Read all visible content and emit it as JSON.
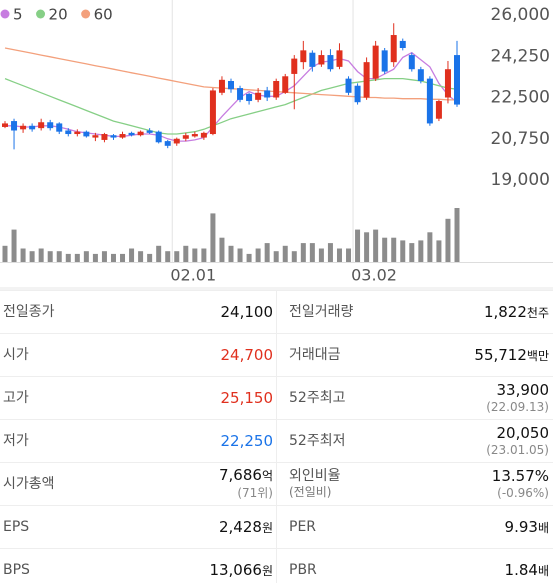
{
  "chart_data": {
    "type": "candlestick",
    "categories": [
      null,
      null,
      null,
      null,
      null,
      null,
      null,
      null,
      null,
      null,
      null,
      null,
      null,
      null,
      null,
      null,
      null,
      null,
      null,
      "02.01",
      null,
      null,
      null,
      null,
      null,
      null,
      null,
      null,
      null,
      null,
      null,
      null,
      null,
      null,
      null,
      null,
      null,
      null,
      null,
      "03.02",
      null,
      null,
      null,
      null,
      null,
      null,
      null,
      null,
      null,
      null,
      null
    ],
    "ylim": [
      19000,
      26000
    ],
    "yticks": [
      {
        "value": 26000,
        "label": "26,000"
      },
      {
        "value": 24250,
        "label": "24,250"
      },
      {
        "value": 22500,
        "label": "22,500"
      },
      {
        "value": 20750,
        "label": "20,750"
      },
      {
        "value": 19000,
        "label": "19,000"
      }
    ],
    "up_color": "#e0301e",
    "down_color": "#1a73e8",
    "open": [
      21250,
      21500,
      21150,
      21300,
      21200,
      21450,
      21400,
      21100,
      20950,
      21050,
      20800,
      20700,
      20900,
      20800,
      21000,
      20900,
      21100,
      21050,
      20650,
      20550,
      20750,
      20850,
      20800,
      20950,
      22700,
      23200,
      22900,
      22650,
      22400,
      22800,
      22500,
      22700,
      23500,
      24000,
      24400,
      23900,
      24300,
      23800,
      23300,
      23000,
      22500,
      23300,
      24500,
      24000,
      24900,
      24300,
      23700,
      23300,
      21600,
      22500,
      24300
    ],
    "high": [
      21500,
      21600,
      21400,
      21400,
      21600,
      21550,
      21450,
      21200,
      21150,
      21100,
      21000,
      21000,
      20950,
      21050,
      21050,
      21100,
      21200,
      21100,
      20700,
      20800,
      21000,
      21050,
      21050,
      22900,
      23400,
      23300,
      23000,
      22700,
      22900,
      22950,
      23300,
      23500,
      24300,
      24900,
      24500,
      24500,
      24550,
      24800,
      23400,
      23100,
      24200,
      24900,
      24600,
      25650,
      25000,
      24400,
      23800,
      23400,
      22400,
      24050,
      24900
    ],
    "low": [
      21200,
      20300,
      21000,
      21050,
      21100,
      21100,
      20950,
      20850,
      20850,
      20800,
      20650,
      20600,
      20700,
      20750,
      20850,
      20850,
      20950,
      20550,
      20350,
      20450,
      20650,
      20800,
      20700,
      20900,
      22600,
      22700,
      22300,
      22200,
      22300,
      22350,
      22400,
      22650,
      22000,
      23700,
      23600,
      23800,
      23600,
      23700,
      22600,
      22200,
      22400,
      23200,
      23500,
      23800,
      24500,
      23600,
      23100,
      21300,
      21500,
      22250,
      22100
    ],
    "close": [
      21400,
      21100,
      21300,
      21150,
      21450,
      21200,
      21050,
      20950,
      21050,
      20850,
      20900,
      20950,
      20800,
      20950,
      20900,
      21050,
      21000,
      20600,
      20450,
      20750,
      20900,
      20950,
      21000,
      22800,
      23250,
      22850,
      22400,
      22350,
      22700,
      22500,
      23200,
      23400,
      24150,
      24500,
      23800,
      24300,
      23700,
      24500,
      22700,
      22300,
      24000,
      24700,
      23600,
      25150,
      24600,
      23700,
      23200,
      21400,
      22350,
      23700,
      22200
    ],
    "series": [
      {
        "name": "5",
        "color": "#c77de0",
        "values": [
          21300,
          21300,
          21250,
          21250,
          21300,
          21300,
          21250,
          21150,
          21050,
          21000,
          20950,
          20900,
          20850,
          20850,
          20900,
          20950,
          20950,
          20900,
          20750,
          20650,
          20650,
          20700,
          20800,
          21250,
          21700,
          22100,
          22500,
          22750,
          22600,
          22550,
          22550,
          22750,
          23000,
          23400,
          23800,
          24000,
          24050,
          24150,
          24050,
          23600,
          23300,
          23300,
          23500,
          23700,
          24200,
          24400,
          24100,
          23800,
          23100,
          22600,
          22300
        ]
      },
      {
        "name": "20",
        "color": "#86cf86",
        "values": [
          23300,
          23150,
          23000,
          22850,
          22700,
          22550,
          22400,
          22250,
          22100,
          21950,
          21800,
          21650,
          21500,
          21400,
          21300,
          21200,
          21100,
          21000,
          20950,
          20950,
          21000,
          21050,
          21150,
          21300,
          21450,
          21600,
          21700,
          21800,
          21900,
          22000,
          22100,
          22200,
          22350,
          22500,
          22650,
          22800,
          22900,
          23000,
          23100,
          23150,
          23200,
          23250,
          23300,
          23300,
          23300,
          23250,
          23200,
          23100,
          23000,
          22900,
          22850
        ]
      },
      {
        "name": "60",
        "color": "#f3a07c",
        "values": [
          24600,
          24525,
          24450,
          24375,
          24300,
          24225,
          24150,
          24075,
          24000,
          23925,
          23850,
          23775,
          23700,
          23625,
          23550,
          23475,
          23400,
          23325,
          23250,
          23175,
          23100,
          23025,
          22950,
          22925,
          22900,
          22875,
          22850,
          22825,
          22800,
          22775,
          22750,
          22725,
          22700,
          22675,
          22650,
          22625,
          22600,
          22575,
          22550,
          22525,
          22500,
          22500,
          22475,
          22475,
          22450,
          22450,
          22450,
          22425,
          22425,
          22400,
          22400
        ]
      }
    ],
    "volume": {
      "color": "#8c8c8c",
      "ylim": [
        0,
        100
      ],
      "values": [
        30,
        60,
        25,
        20,
        25,
        20,
        20,
        15,
        15,
        20,
        15,
        20,
        15,
        15,
        25,
        20,
        15,
        30,
        20,
        20,
        30,
        25,
        25,
        90,
        45,
        30,
        25,
        15,
        25,
        35,
        20,
        30,
        20,
        35,
        35,
        25,
        35,
        25,
        25,
        60,
        55,
        60,
        45,
        45,
        40,
        35,
        40,
        55,
        40,
        80,
        100
      ]
    }
  },
  "table": {
    "rows": [
      [
        {
          "label": "전일종가",
          "value": "24,100"
        },
        {
          "label": "전일거래량",
          "value": "1,822",
          "unit": "천주"
        }
      ],
      [
        {
          "label": "시가",
          "value": "24,700",
          "color": "#e0301e"
        },
        {
          "label": "거래대금",
          "value": "55,712",
          "unit": "백만"
        }
      ],
      [
        {
          "label": "고가",
          "value": "25,150",
          "color": "#e0301e"
        },
        {
          "label": "52주최고",
          "value": "33,900",
          "sub": "(22.09.13)"
        }
      ],
      [
        {
          "label": "저가",
          "value": "22,250",
          "color": "#1a73e8"
        },
        {
          "label": "52주최저",
          "value": "20,050",
          "sub": "(23.01.05)"
        }
      ],
      [
        {
          "label": "시가총액",
          "value": "7,686",
          "unit": "억",
          "sub": "(71위)"
        },
        {
          "label": "외인비율",
          "label_sub": "(전일비)",
          "value": "13.57%",
          "sub": "(-0.96%)"
        }
      ],
      [
        {
          "label": "EPS",
          "value": "2,428",
          "unit": "원"
        },
        {
          "label": "PER",
          "value": "9.93",
          "unit": "배"
        }
      ],
      [
        {
          "label": "BPS",
          "value": "13,066",
          "unit": "원"
        },
        {
          "label": "PBR",
          "value": "1.84",
          "unit": "배"
        }
      ]
    ]
  }
}
